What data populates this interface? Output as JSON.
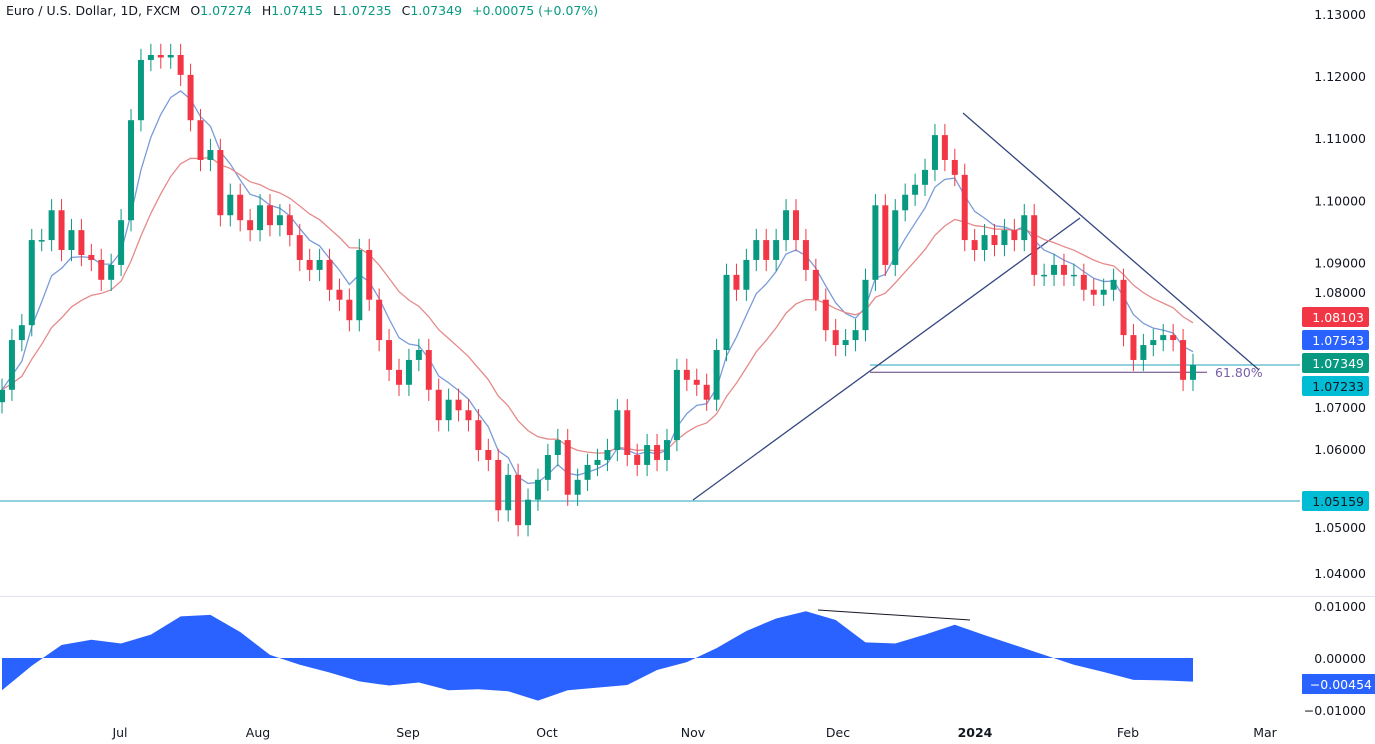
{
  "header": {
    "symbol": "Euro / U.S. Dollar, 1D, FXCM",
    "open_key": "O",
    "open": "1.07274",
    "high_key": "H",
    "high": "1.07415",
    "low_key": "L",
    "low": "1.07235",
    "close_key": "C",
    "close": "1.07349",
    "change": "+0.00075 (+0.07%)"
  },
  "chart_data": {
    "type": "candlestick",
    "instrument": "EURUSD",
    "timeframe": "1D",
    "closes": [
      1.0695,
      1.0775,
      1.0799,
      1.0936,
      1.0936,
      1.0984,
      1.092,
      1.0952,
      1.0912,
      1.0904,
      1.0872,
      1.0896,
      1.0968,
      1.1129,
      1.1226,
      1.1234,
      1.123,
      1.1234,
      1.1202,
      1.1129,
      1.1065,
      1.1081,
      1.0976,
      1.1009,
      1.0968,
      1.0952,
      1.0992,
      1.096,
      1.0976,
      1.0944,
      1.0904,
      1.0888,
      1.0904,
      1.0856,
      1.084,
      1.0807,
      1.092,
      1.084,
      1.0775,
      1.0727,
      1.0703,
      1.0743,
      1.0759,
      1.0695,
      1.0646,
      1.0679,
      1.0662,
      1.0646,
      1.0598,
      1.0582,
      1.0501,
      1.0558,
      1.0477,
      1.0518,
      1.055,
      1.059,
      1.0614,
      1.0526,
      1.055,
      1.0574,
      1.0582,
      1.0598,
      1.0662,
      1.059,
      1.0574,
      1.0606,
      1.0582,
      1.0614,
      1.0727,
      1.0711,
      1.0703,
      1.0679,
      1.0759,
      1.088,
      1.0856,
      1.0904,
      1.0936,
      1.0904,
      1.0936,
      1.0984,
      1.0936,
      1.0888,
      1.084,
      1.0791,
      1.0767,
      1.0775,
      1.0791,
      1.0872,
      1.0992,
      1.0896,
      1.0984,
      1.1009,
      1.1025,
      1.1049,
      1.1105,
      1.1065,
      1.1041,
      1.0936,
      1.092,
      1.0944,
      1.0928,
      1.0952,
      1.0936,
      1.0976,
      1.088,
      1.088,
      1.0896,
      1.088,
      1.088,
      1.0856,
      1.0848,
      1.0856,
      1.0872,
      1.0783,
      1.0743,
      1.0767,
      1.0775,
      1.0783,
      1.0775,
      1.0711,
      1.07349
    ],
    "oscillator": [
      -0.0062,
      -0.0015,
      0.0025,
      0.0035,
      0.0028,
      0.0045,
      0.008,
      0.0083,
      0.005,
      0.0006,
      -0.0013,
      -0.0028,
      -0.0045,
      -0.0053,
      -0.0047,
      -0.0062,
      -0.006,
      -0.0064,
      -0.0082,
      -0.0062,
      -0.0057,
      -0.0052,
      -0.0023,
      -0.0008,
      0.0019,
      0.0052,
      0.0076,
      0.009,
      0.0073,
      0.003,
      0.0028,
      0.0045,
      0.0064,
      0.0044,
      0.0025,
      0.0006,
      -0.0013,
      -0.0027,
      -0.0042,
      -0.0043,
      -0.00454
    ],
    "price_ylim": [
      1.035,
      1.13
    ],
    "oscillator_ylim": [
      -0.0115,
      0.0115
    ],
    "price_ticks": [
      "1.13000",
      "1.12000",
      "1.11000",
      "1.10000",
      "1.09000",
      "1.08000",
      "1.07000",
      "1.06000",
      "1.05000",
      "1.04000"
    ],
    "oscillator_ticks": [
      "0.01000",
      "0.00000",
      "−0.01000"
    ],
    "x_ticks": [
      "Jul",
      "Aug",
      "Sep",
      "Oct",
      "Nov",
      "Dec",
      "2024",
      "Feb",
      "Mar"
    ],
    "price_labels": [
      {
        "value": "1.08103",
        "color": "#f23645",
        "text_color": "#ffffff"
      },
      {
        "value": "1.07543",
        "color": "#2962ff",
        "text_color": "#ffffff"
      },
      {
        "value": "1.07349",
        "color": "#089981",
        "text_color": "#ffffff"
      },
      {
        "value": "1.07233",
        "color": "#00bcd4",
        "text_color": "#131722"
      },
      {
        "value": "1.05159",
        "color": "#00bcd4",
        "text_color": "#131722"
      }
    ],
    "oscillator_label": {
      "value": "−0.00454",
      "color": "#2962ff"
    },
    "horizontal_levels": {
      "support": 1.05159,
      "current": 1.07349,
      "fib": 1.07233
    },
    "fib_label": "61.80%",
    "colors": {
      "up": "#089981",
      "down": "#f23645",
      "ma_fast": "#7b9bd8",
      "ma_slow": "#e58a8a",
      "trendline": "#34477f",
      "level": "#26a6b8",
      "fib": "#5b3f7a",
      "osc": "#2962ff"
    },
    "grid": false
  }
}
